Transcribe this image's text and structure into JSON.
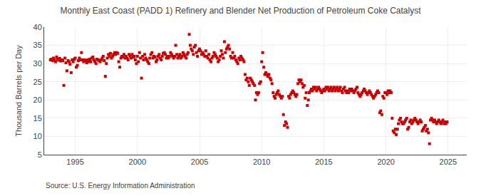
{
  "chart_data": {
    "type": "scatter",
    "title": "Monthly East Coast (PADD 1) Refinery and Blender Net Production of Petroleum Coke Catalyst",
    "ylabel": "Thousand Barrels per Day",
    "annotations": [
      "Source: U.S. Energy Information Administration"
    ],
    "color": "#cc0000",
    "marker": "square",
    "grid": true,
    "xlim": [
      1992.5,
      2026.5
    ],
    "xticks": [
      1995,
      2000,
      2005,
      2010,
      2015,
      2020,
      2025
    ],
    "ylim": [
      5,
      40
    ],
    "yticks": [
      5,
      10,
      15,
      20,
      25,
      30,
      35,
      40
    ],
    "x": [
      1993.0,
      1993.08,
      1993.17,
      1993.25,
      1993.33,
      1993.42,
      1993.5,
      1993.58,
      1993.67,
      1993.75,
      1993.83,
      1993.92,
      1994.0,
      1994.08,
      1994.17,
      1994.25,
      1994.33,
      1994.42,
      1994.5,
      1994.58,
      1994.67,
      1994.75,
      1994.83,
      1994.92,
      1995.0,
      1995.08,
      1995.17,
      1995.25,
      1995.33,
      1995.42,
      1995.5,
      1995.58,
      1995.67,
      1995.75,
      1995.83,
      1995.92,
      1996.0,
      1996.08,
      1996.17,
      1996.25,
      1996.33,
      1996.42,
      1996.5,
      1996.58,
      1996.67,
      1996.75,
      1996.83,
      1996.92,
      1997.0,
      1997.08,
      1997.17,
      1997.25,
      1997.33,
      1997.42,
      1997.5,
      1997.58,
      1997.67,
      1997.75,
      1997.83,
      1997.92,
      1998.0,
      1998.08,
      1998.17,
      1998.25,
      1998.33,
      1998.42,
      1998.5,
      1998.58,
      1998.67,
      1998.75,
      1998.83,
      1998.92,
      1999.0,
      1999.08,
      1999.17,
      1999.25,
      1999.33,
      1999.42,
      1999.5,
      1999.58,
      1999.67,
      1999.75,
      1999.83,
      1999.92,
      2000.0,
      2000.08,
      2000.17,
      2000.25,
      2000.33,
      2000.42,
      2000.5,
      2000.58,
      2000.67,
      2000.75,
      2000.83,
      2000.92,
      2001.0,
      2001.08,
      2001.17,
      2001.25,
      2001.33,
      2001.42,
      2001.5,
      2001.58,
      2001.67,
      2001.75,
      2001.83,
      2001.92,
      2002.0,
      2002.08,
      2002.17,
      2002.25,
      2002.33,
      2002.42,
      2002.5,
      2002.58,
      2002.67,
      2002.75,
      2002.83,
      2002.92,
      2003.0,
      2003.08,
      2003.17,
      2003.25,
      2003.33,
      2003.42,
      2003.5,
      2003.58,
      2003.67,
      2003.75,
      2003.83,
      2003.92,
      2004.0,
      2004.08,
      2004.17,
      2004.25,
      2004.33,
      2004.42,
      2004.5,
      2004.58,
      2004.67,
      2004.75,
      2004.83,
      2004.92,
      2005.0,
      2005.08,
      2005.17,
      2005.25,
      2005.33,
      2005.42,
      2005.5,
      2005.58,
      2005.67,
      2005.75,
      2005.83,
      2005.92,
      2006.0,
      2006.08,
      2006.17,
      2006.25,
      2006.33,
      2006.42,
      2006.5,
      2006.58,
      2006.67,
      2006.75,
      2006.83,
      2006.92,
      2007.0,
      2007.08,
      2007.17,
      2007.25,
      2007.33,
      2007.42,
      2007.5,
      2007.58,
      2007.67,
      2007.75,
      2007.83,
      2007.92,
      2008.0,
      2008.08,
      2008.17,
      2008.25,
      2008.33,
      2008.42,
      2008.5,
      2008.58,
      2008.67,
      2008.75,
      2008.83,
      2008.92,
      2009.0,
      2009.08,
      2009.17,
      2009.25,
      2009.33,
      2009.42,
      2009.5,
      2009.58,
      2009.67,
      2009.75,
      2009.83,
      2009.92,
      2010.0,
      2010.08,
      2010.17,
      2010.25,
      2010.33,
      2010.42,
      2010.5,
      2010.58,
      2010.67,
      2010.75,
      2010.83,
      2010.92,
      2011.0,
      2011.08,
      2011.17,
      2011.25,
      2011.33,
      2011.42,
      2011.5,
      2011.58,
      2011.67,
      2011.75,
      2011.83,
      2011.92,
      2012.0,
      2012.08,
      2012.17,
      2012.25,
      2012.33,
      2012.42,
      2012.5,
      2012.58,
      2012.67,
      2012.75,
      2012.83,
      2012.92,
      2013.0,
      2013.08,
      2013.17,
      2013.25,
      2013.33,
      2013.42,
      2013.5,
      2013.58,
      2013.67,
      2013.75,
      2013.83,
      2013.92,
      2014.0,
      2014.08,
      2014.17,
      2014.25,
      2014.33,
      2014.42,
      2014.5,
      2014.58,
      2014.67,
      2014.75,
      2014.83,
      2014.92,
      2015.0,
      2015.08,
      2015.17,
      2015.25,
      2015.33,
      2015.42,
      2015.5,
      2015.58,
      2015.67,
      2015.75,
      2015.83,
      2015.92,
      2016.0,
      2016.08,
      2016.17,
      2016.25,
      2016.33,
      2016.42,
      2016.5,
      2016.58,
      2016.67,
      2016.75,
      2016.83,
      2016.92,
      2017.0,
      2017.08,
      2017.17,
      2017.25,
      2017.33,
      2017.42,
      2017.5,
      2017.58,
      2017.67,
      2017.75,
      2017.83,
      2017.92,
      2018.0,
      2018.08,
      2018.17,
      2018.25,
      2018.33,
      2018.42,
      2018.5,
      2018.58,
      2018.67,
      2018.75,
      2018.83,
      2018.92,
      2019.0,
      2019.08,
      2019.17,
      2019.25,
      2019.33,
      2019.42,
      2019.5,
      2019.58,
      2019.67,
      2019.75,
      2019.83,
      2019.92,
      2020.0,
      2020.08,
      2020.17,
      2020.25,
      2020.33,
      2020.42,
      2020.5,
      2020.58,
      2020.67,
      2020.75,
      2020.83,
      2020.92,
      2021.0,
      2021.08,
      2021.17,
      2021.25,
      2021.33,
      2021.42,
      2021.5,
      2021.58,
      2021.67,
      2021.75,
      2021.83,
      2021.92,
      2022.0,
      2022.08,
      2022.17,
      2022.25,
      2022.33,
      2022.42,
      2022.5,
      2022.58,
      2022.67,
      2022.75,
      2022.83,
      2022.92,
      2023.0,
      2023.08,
      2023.17,
      2023.25,
      2023.33,
      2023.42,
      2023.5,
      2023.58,
      2023.67,
      2023.75,
      2023.83,
      2023.92,
      2024.0,
      2024.08,
      2024.17,
      2024.25,
      2024.33,
      2024.42,
      2024.5,
      2024.58,
      2024.67,
      2024.75,
      2024.83,
      2024.92
    ],
    "values": [
      31.0,
      31.2,
      30.8,
      31.5,
      31.0,
      30.5,
      31.8,
      31.2,
      30.9,
      31.4,
      30.7,
      31.0,
      30.8,
      24.0,
      31.5,
      30.2,
      28.0,
      30.8,
      30.5,
      29.8,
      27.5,
      31.0,
      30.5,
      31.2,
      31.5,
      29.0,
      29.5,
      30.8,
      31.5,
      31.0,
      33.0,
      31.0,
      30.5,
      31.0,
      30.8,
      30.2,
      31.0,
      30.5,
      31.2,
      30.5,
      31.5,
      31.8,
      31.0,
      30.5,
      30.0,
      31.2,
      31.0,
      30.8,
      30.5,
      31.0,
      31.5,
      32.0,
      30.8,
      26.5,
      30.0,
      31.5,
      32.5,
      32.0,
      32.8,
      31.5,
      32.0,
      32.5,
      33.0,
      32.5,
      33.0,
      32.8,
      30.5,
      29.0,
      31.5,
      32.0,
      31.8,
      32.5,
      31.5,
      32.0,
      31.5,
      31.0,
      32.5,
      32.0,
      31.5,
      32.5,
      31.8,
      32.0,
      31.0,
      30.0,
      32.0,
      30.5,
      33.0,
      31.5,
      26.0,
      32.0,
      31.0,
      32.5,
      31.5,
      31.0,
      30.5,
      30.0,
      31.5,
      32.5,
      33.0,
      31.5,
      32.0,
      31.8,
      30.5,
      31.0,
      32.0,
      32.5,
      31.5,
      31.0,
      32.0,
      32.8,
      33.0,
      32.5,
      31.5,
      32.0,
      31.5,
      32.0,
      33.0,
      32.5,
      32.0,
      31.5,
      32.0,
      35.0,
      32.5,
      31.5,
      32.0,
      32.5,
      31.5,
      32.0,
      33.0,
      32.5,
      32.0,
      31.5,
      32.5,
      33.0,
      38.0,
      35.0,
      34.0,
      33.5,
      32.5,
      34.5,
      35.0,
      33.0,
      32.0,
      33.5,
      34.0,
      33.5,
      32.5,
      33.0,
      32.5,
      32.0,
      33.5,
      32.0,
      31.5,
      32.5,
      31.0,
      30.5,
      31.5,
      32.0,
      33.0,
      32.5,
      32.0,
      31.5,
      30.5,
      31.0,
      32.0,
      33.5,
      32.5,
      31.5,
      36.0,
      33.0,
      34.0,
      34.5,
      35.0,
      34.0,
      32.0,
      31.5,
      33.0,
      31.5,
      32.0,
      31.0,
      30.5,
      30.0,
      31.5,
      31.0,
      32.0,
      31.5,
      31.0,
      30.5,
      27.0,
      25.5,
      26.0,
      25.0,
      24.0,
      26.0,
      25.5,
      25.0,
      24.5,
      24.0,
      20.0,
      22.0,
      21.5,
      22.0,
      24.5,
      25.0,
      30.5,
      33.0,
      29.0,
      27.0,
      27.5,
      27.0,
      26.5,
      27.0,
      26.0,
      25.5,
      24.5,
      22.0,
      21.0,
      20.5,
      21.5,
      22.0,
      22.5,
      21.5,
      21.0,
      20.5,
      21.0,
      16.0,
      13.0,
      14.0,
      13.5,
      12.5,
      21.0,
      20.5,
      21.5,
      22.0,
      22.5,
      22.0,
      21.5,
      21.0,
      21.5,
      24.5,
      25.5,
      25.0,
      25.5,
      24.5,
      23.5,
      24.0,
      20.5,
      22.0,
      18.5,
      20.0,
      22.0,
      22.5,
      23.0,
      22.5,
      23.5,
      23.0,
      23.5,
      22.5,
      23.0,
      23.5,
      23.0,
      22.5,
      22.0,
      22.5,
      23.0,
      22.5,
      23.5,
      23.0,
      23.5,
      22.5,
      23.0,
      23.5,
      22.5,
      23.0,
      23.5,
      22.5,
      23.0,
      23.5,
      22.5,
      23.0,
      23.5,
      22.5,
      22.0,
      23.0,
      23.5,
      22.5,
      22.0,
      22.5,
      22.0,
      23.0,
      22.5,
      23.0,
      22.5,
      22.0,
      22.5,
      23.0,
      23.5,
      22.0,
      21.5,
      21.0,
      21.5,
      22.0,
      22.5,
      23.0,
      22.5,
      22.0,
      21.5,
      22.0,
      22.5,
      22.0,
      21.5,
      21.0,
      20.5,
      21.0,
      21.5,
      22.0,
      22.5,
      22.0,
      16.5,
      17.0,
      16.0,
      21.0,
      20.5,
      22.0,
      22.0,
      21.5,
      22.5,
      22.0,
      22.5,
      22.0,
      15.0,
      11.5,
      11.0,
      12.0,
      10.5,
      12.0,
      13.5,
      14.5,
      15.0,
      14.0,
      13.5,
      13.5,
      14.0,
      14.5,
      15.0,
      12.0,
      12.5,
      14.0,
      14.5,
      13.5,
      14.0,
      14.5,
      15.0,
      14.5,
      14.0,
      13.5,
      14.0,
      14.5,
      14.0,
      11.5,
      12.0,
      12.5,
      13.0,
      11.5,
      12.0,
      11.0,
      8.0,
      14.5,
      15.0,
      14.5,
      14.0,
      14.5,
      14.0,
      13.5,
      14.0,
      14.5,
      14.0,
      13.5,
      14.0,
      14.5,
      13.5,
      14.0,
      13.5,
      14.0
    ]
  }
}
